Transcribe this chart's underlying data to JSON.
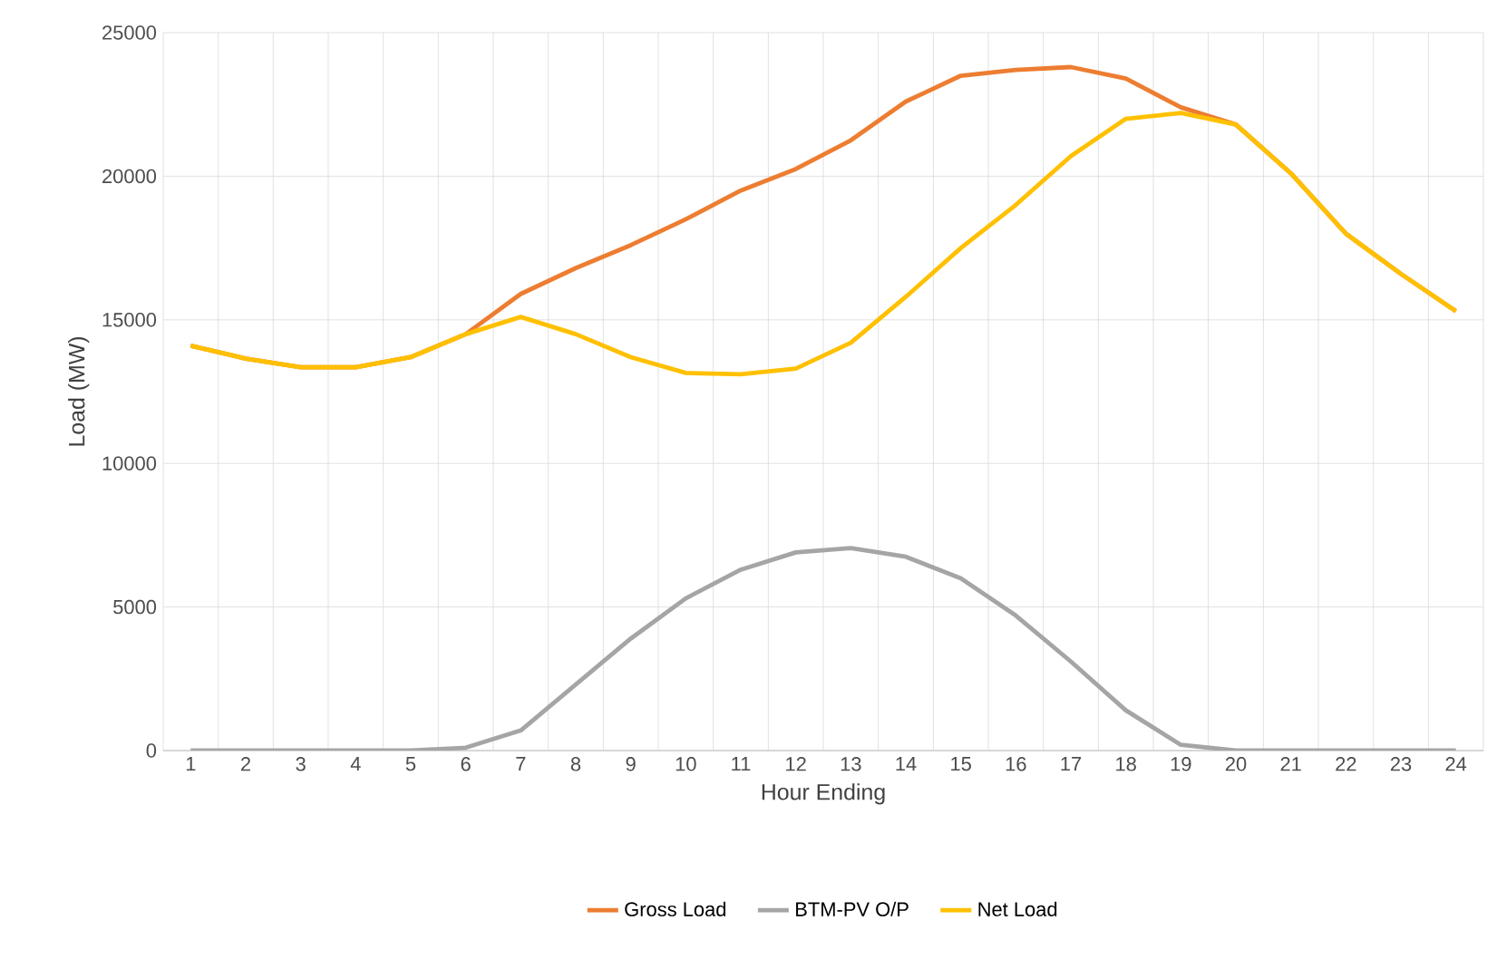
{
  "chart_data": {
    "type": "line",
    "xlabel": "Hour Ending",
    "ylabel": "Load (MW)",
    "categories": [
      "1",
      "2",
      "3",
      "4",
      "5",
      "6",
      "7",
      "8",
      "9",
      "10",
      "11",
      "12",
      "13",
      "14",
      "15",
      "16",
      "17",
      "18",
      "19",
      "20",
      "21",
      "22",
      "23",
      "24"
    ],
    "series": [
      {
        "name": "Gross Load",
        "color": "#ed7d31",
        "values": [
          14100,
          13650,
          13350,
          13350,
          13700,
          14500,
          15900,
          16800,
          17600,
          18500,
          19500,
          20250,
          21250,
          22600,
          23500,
          23700,
          23800,
          23400,
          22400,
          21800,
          20100,
          18000,
          16600,
          15300
        ]
      },
      {
        "name": "BTM-PV O/P",
        "color": "#a5a5a5",
        "values": [
          0,
          0,
          0,
          0,
          0,
          100,
          700,
          2300,
          3900,
          5300,
          6300,
          6900,
          7050,
          6750,
          6000,
          4700,
          3100,
          1400,
          200,
          0,
          0,
          0,
          0,
          0
        ]
      },
      {
        "name": "Net Load",
        "color": "#ffc000",
        "values": [
          14100,
          13650,
          13350,
          13350,
          13700,
          14500,
          15100,
          14500,
          13700,
          13150,
          13100,
          13300,
          14200,
          15800,
          17500,
          19000,
          20700,
          22000,
          22200,
          21800,
          20100,
          18000,
          16600,
          15300
        ]
      }
    ],
    "ylim": [
      0,
      25000
    ],
    "yticks": [
      0,
      5000,
      10000,
      15000,
      20000,
      25000
    ],
    "grid": true,
    "legend": "bottom",
    "marker": "none",
    "line_style": "solid"
  }
}
